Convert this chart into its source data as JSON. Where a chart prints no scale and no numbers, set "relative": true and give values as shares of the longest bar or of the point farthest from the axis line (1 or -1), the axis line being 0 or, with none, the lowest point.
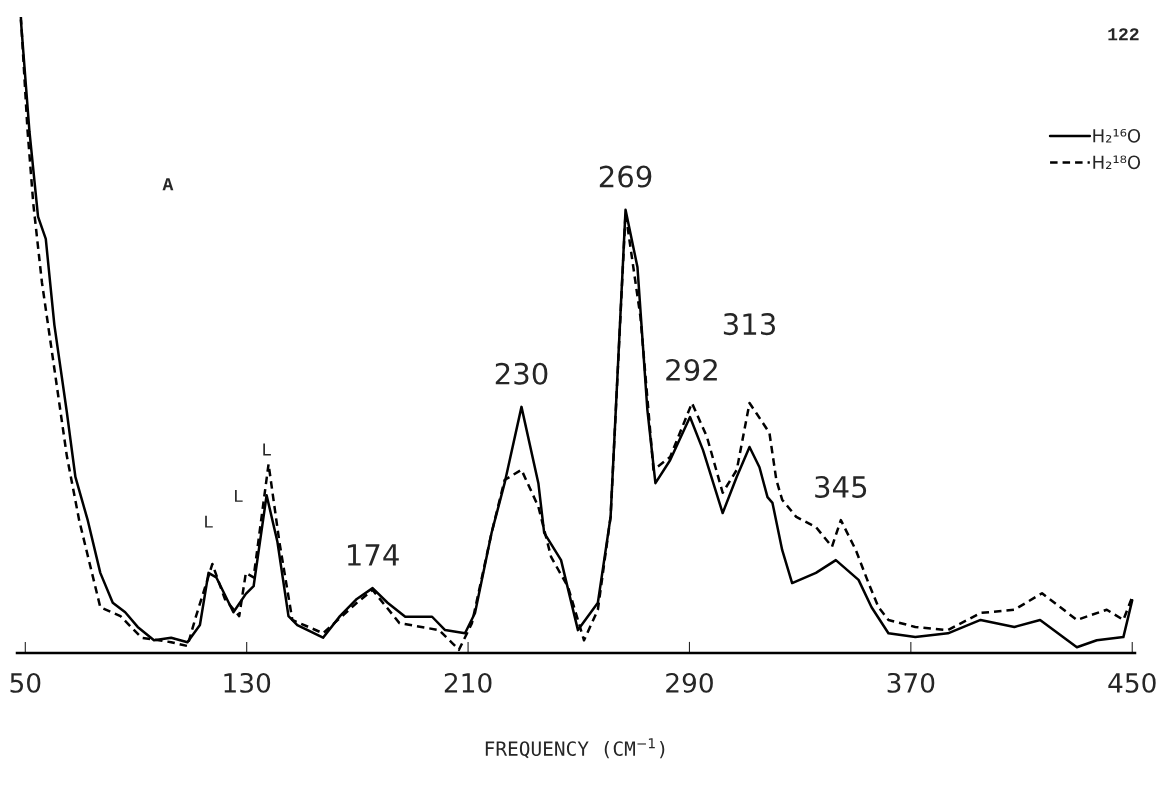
{
  "chart_data": {
    "type": "line",
    "relative": true,
    "xlabel": "FREQUENCY (CM$^{−1}$)",
    "xlim": [
      47,
      451
    ],
    "xticks": [
      50,
      130,
      210,
      290,
      370,
      450
    ],
    "grid": false,
    "legend": "top right",
    "marker": "none",
    "series": [
      {
        "name": "H₂¹⁶O",
        "color": "#000000",
        "line_style": "solid",
        "x": [
          48.4,
          51.5,
          54.6,
          57.4,
          60.5,
          65.0,
          68.1,
          72.6,
          77.1,
          81.6,
          86.1,
          90.6,
          96.5,
          102.7,
          108.6,
          113.1,
          116.2,
          119.0,
          125.2,
          129.7,
          132.5,
          137.2,
          141.1,
          145.1,
          148.3,
          157.6,
          163.7,
          169.8,
          175.5,
          180.9,
          187.3,
          197.0,
          201.7,
          208.9,
          212.5,
          218.5,
          223.2,
          229.3,
          235.4,
          237.5,
          243.6,
          249.7,
          256.9,
          261.5,
          266.9,
          271.2,
          274.8,
          277.7,
          283.0,
          290.2,
          294.9,
          302.0,
          307.1,
          311.7,
          315.3,
          318.2,
          320.0,
          323.5,
          327.1,
          335.7,
          342.9,
          351.1,
          355.8,
          361.9,
          371.6,
          383.4,
          395.2,
          407.4,
          416.7,
          430.0,
          437.2,
          446.8,
          450.0
        ],
        "values": [
          0.995,
          0.82,
          0.686,
          0.651,
          0.516,
          0.379,
          0.277,
          0.208,
          0.126,
          0.079,
          0.064,
          0.041,
          0.02,
          0.024,
          0.017,
          0.044,
          0.126,
          0.119,
          0.064,
          0.093,
          0.105,
          0.248,
          0.175,
          0.058,
          0.044,
          0.024,
          0.058,
          0.085,
          0.102,
          0.079,
          0.057,
          0.057,
          0.036,
          0.031,
          0.063,
          0.189,
          0.267,
          0.387,
          0.267,
          0.189,
          0.146,
          0.036,
          0.079,
          0.214,
          0.697,
          0.607,
          0.382,
          0.267,
          0.303,
          0.371,
          0.319,
          0.22,
          0.277,
          0.324,
          0.292,
          0.245,
          0.236,
          0.162,
          0.11,
          0.126,
          0.146,
          0.115,
          0.072,
          0.031,
          0.025,
          0.031,
          0.052,
          0.041,
          0.052,
          0.009,
          0.02,
          0.025,
          0.083
        ]
      },
      {
        "name": "H₂¹⁸O",
        "color": "#000000",
        "line_style": "dashed",
        "x": [
          48.4,
          50.8,
          52.9,
          56.0,
          60.5,
          65.0,
          69.5,
          77.1,
          84.4,
          92.0,
          102.7,
          108.6,
          111.7,
          117.6,
          122.1,
          127.3,
          129.7,
          132.5,
          137.9,
          141.8,
          146.5,
          157.6,
          169.8,
          175.5,
          185.2,
          199.5,
          204.2,
          206.7,
          211.4,
          218.5,
          223.2,
          229.3,
          235.4,
          240.0,
          246.1,
          251.9,
          256.9,
          261.5,
          266.9,
          272.3,
          277.0,
          283.0,
          290.9,
          296.3,
          302.0,
          307.1,
          311.7,
          314.2,
          318.9,
          321.4,
          323.5,
          328.6,
          335.7,
          341.5,
          344.7,
          350.1,
          354.7,
          358.3,
          361.9,
          371.6,
          383.4,
          395.2,
          407.4,
          417.4,
          430.0,
          440.8,
          446.8,
          450.0
        ],
        "values": [
          1.0,
          0.822,
          0.706,
          0.583,
          0.447,
          0.31,
          0.208,
          0.072,
          0.058,
          0.024,
          0.017,
          0.011,
          0.058,
          0.14,
          0.085,
          0.058,
          0.126,
          0.119,
          0.297,
          0.175,
          0.052,
          0.031,
          0.079,
          0.099,
          0.047,
          0.036,
          0.016,
          0.005,
          0.047,
          0.189,
          0.272,
          0.288,
          0.23,
          0.151,
          0.104,
          0.02,
          0.068,
          0.214,
          0.692,
          0.528,
          0.288,
          0.308,
          0.393,
          0.34,
          0.252,
          0.288,
          0.393,
          0.377,
          0.346,
          0.272,
          0.241,
          0.214,
          0.198,
          0.167,
          0.209,
          0.162,
          0.11,
          0.072,
          0.052,
          0.041,
          0.036,
          0.063,
          0.068,
          0.094,
          0.052,
          0.068,
          0.052,
          0.088
        ]
      }
    ],
    "annotations": [
      "122",
      "A",
      "L",
      {
        "text": "269",
        "x": 266.9,
        "y": 0.697
      },
      {
        "text": "230",
        "x": 229.3,
        "y": 0.387
      },
      {
        "text": "292",
        "x": 290.9,
        "y": 0.393
      },
      {
        "text": "313",
        "x": 311.7,
        "y": 0.393
      },
      {
        "text": "345",
        "x": 344.7,
        "y": 0.209
      },
      {
        "text": "174",
        "x": 175.5,
        "y": 0.102
      },
      {
        "text": "L",
        "x": 116.2,
        "y": 0.126
      },
      {
        "text": "L",
        "x": 137.2,
        "y": 0.248
      }
    ]
  }
}
